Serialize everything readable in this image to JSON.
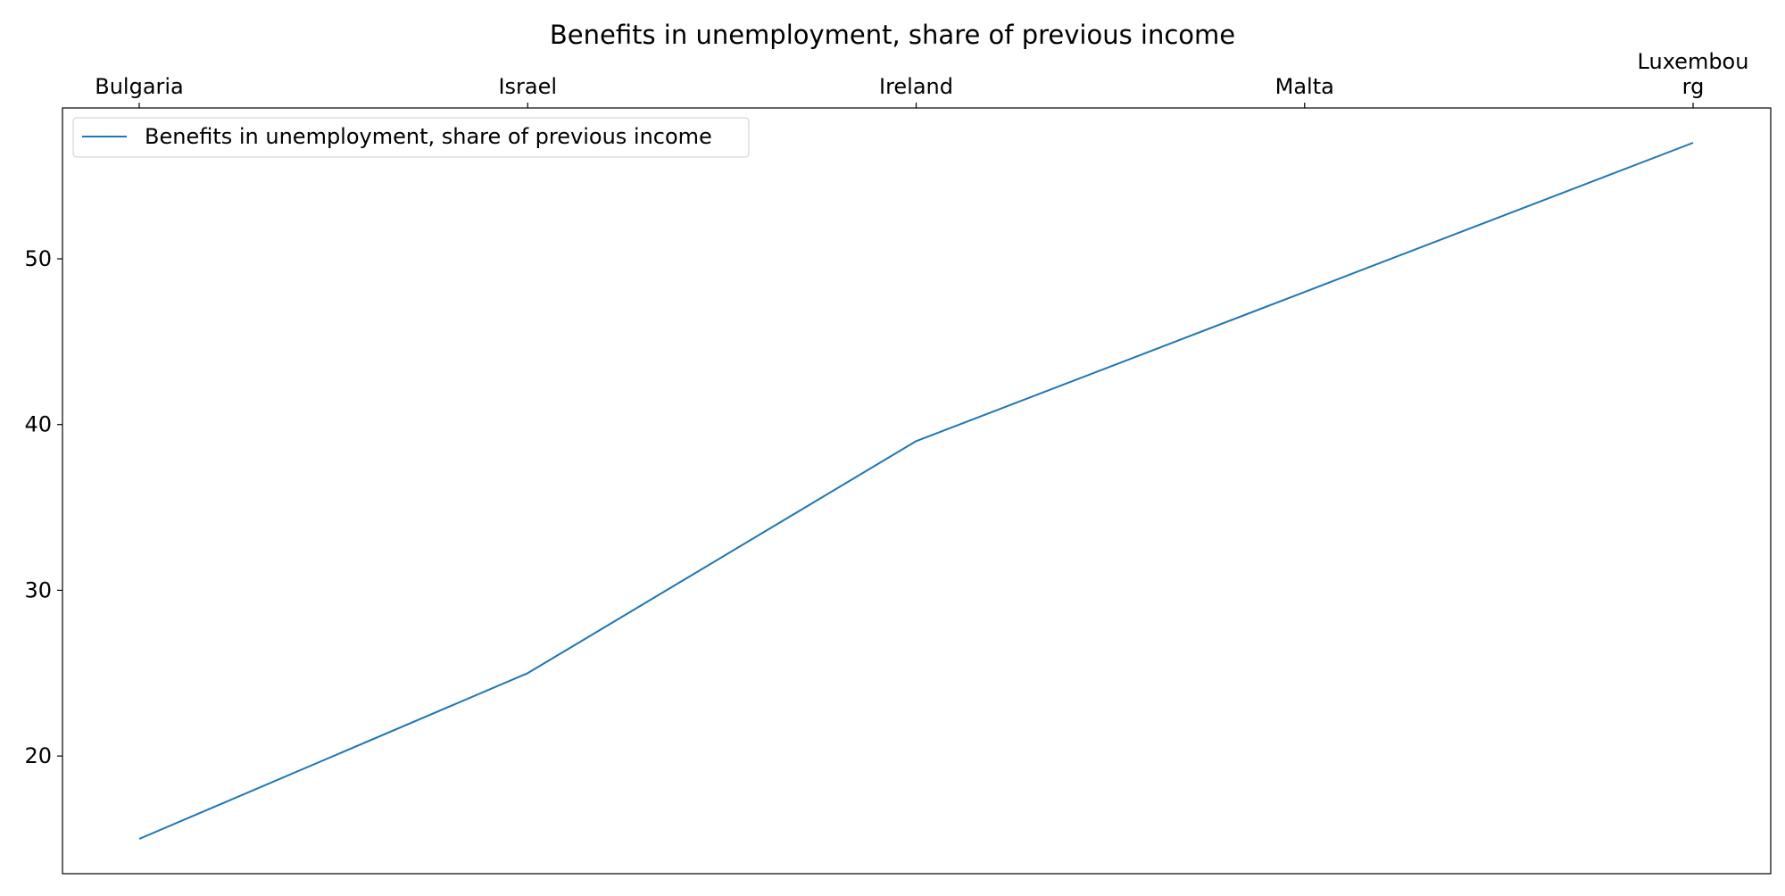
{
  "chart_data": {
    "type": "line",
    "title": "Benefits in unemployment, share of previous income",
    "xlabel": "",
    "ylabel": "",
    "categories": [
      "Bulgaria",
      "Israel",
      "Ireland",
      "Malta",
      "Luxembourg"
    ],
    "category_labels": [
      [
        "Bulgaria"
      ],
      [
        "Israel"
      ],
      [
        "Ireland"
      ],
      [
        "Malta"
      ],
      [
        "Luxembou",
        "rg"
      ]
    ],
    "series": [
      {
        "name": "Benefits in unemployment, share of previous income",
        "values": [
          15,
          25,
          39,
          48,
          57
        ],
        "color": "#1f77b4"
      }
    ],
    "ylim": [
      12.9,
      59.1
    ],
    "yticks": [
      20,
      30,
      40,
      50
    ],
    "x_axis_position": "top",
    "grid": false,
    "legend": "top-left"
  }
}
